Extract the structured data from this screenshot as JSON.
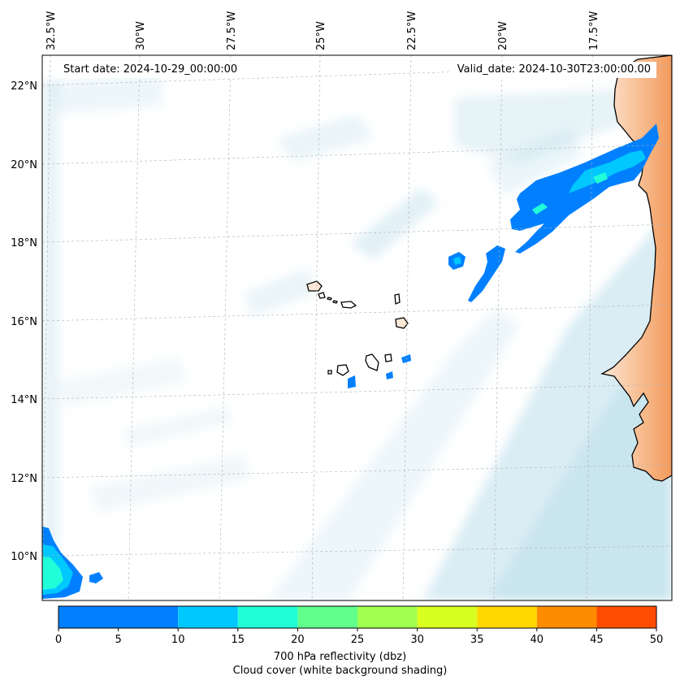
{
  "header": {
    "start_date": "Start date: 2024-10-29_00:00:00",
    "valid_date": "Valid_date: 2024-10-30T23:00:00.00"
  },
  "map": {
    "longitude_labels": [
      "32.5°W",
      "30°W",
      "27.5°W",
      "25°W",
      "22.5°W",
      "20°W",
      "17.5°W"
    ],
    "latitude_labels": [
      "22°N",
      "20°N",
      "18°N",
      "16°N",
      "14°N",
      "12°N",
      "10°N"
    ],
    "ocean_color": "#ffffff",
    "cloud_color": "#add8e6",
    "land_color": "#f4a460",
    "coastline_color": "#000000",
    "gridlines": true,
    "features": [
      "Cape Verde islands",
      "West African coastline"
    ]
  },
  "colorbar": {
    "ticks": [
      "0",
      "5",
      "10",
      "15",
      "20",
      "25",
      "30",
      "35",
      "40",
      "45",
      "50"
    ],
    "label": "700 hPa reflectivity (dbz)",
    "sublabel": "Cloud cover (white background shading)",
    "colors": [
      "#0080ff",
      "#00c8ff",
      "#20ffd8",
      "#60ff8c",
      "#a0ff50",
      "#d8ff20",
      "#ffd800",
      "#ff8c00",
      "#ff4c00"
    ],
    "levels": [
      5,
      10,
      15,
      20,
      25,
      30,
      35,
      40,
      45,
      50
    ]
  }
}
